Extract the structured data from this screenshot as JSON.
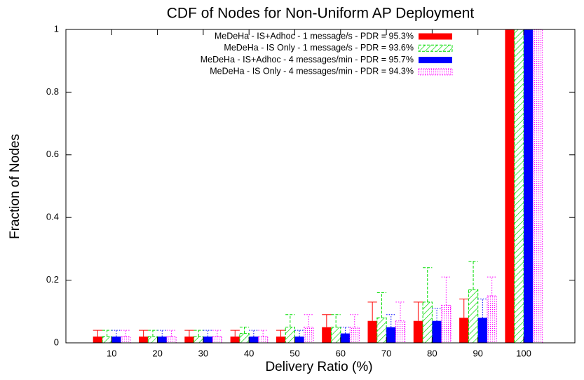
{
  "chart_data": {
    "type": "bar",
    "title": "CDF of Nodes for Non-Uniform AP Deployment",
    "x_label": "Delivery Ratio (%)",
    "y_label": "Fraction of Nodes",
    "categories": [
      "10",
      "20",
      "30",
      "40",
      "50",
      "60",
      "70",
      "80",
      "90",
      "100"
    ],
    "ylim": [
      0,
      1
    ],
    "yticks": [
      0,
      0.2,
      0.4,
      0.6,
      0.8,
      1
    ],
    "legend": "top-right",
    "series": [
      {
        "name": "MeDeHa - IS+Adhoc - 1 message/s - PDR = 95.3%",
        "color": "#ff0000",
        "pattern": "solid",
        "line_style": "solid",
        "values": [
          0.02,
          0.02,
          0.02,
          0.02,
          0.02,
          0.05,
          0.07,
          0.07,
          0.08,
          1
        ],
        "errors": [
          0.02,
          0.02,
          0.02,
          0.02,
          0.02,
          0.04,
          0.06,
          0.06,
          0.06,
          0
        ]
      },
      {
        "name": "MeDeHa - IS Only - 1 message/s - PDR = 93.6%",
        "color": "#00dd00",
        "pattern": "hatched",
        "line_style": "dashed",
        "values": [
          0.02,
          0.02,
          0.02,
          0.03,
          0.05,
          0.05,
          0.08,
          0.13,
          0.17,
          1
        ],
        "errors": [
          0.02,
          0.02,
          0.02,
          0.02,
          0.04,
          0.04,
          0.08,
          0.11,
          0.09,
          0
        ]
      },
      {
        "name": "MeDeHa - IS+Adhoc - 4 messages/min - PDR = 95.7%",
        "color": "#0000ff",
        "pattern": "solid",
        "line_style": "dotted",
        "values": [
          0.02,
          0.02,
          0.02,
          0.02,
          0.02,
          0.03,
          0.05,
          0.07,
          0.08,
          1
        ],
        "errors": [
          0.02,
          0.02,
          0.02,
          0.02,
          0.02,
          0.02,
          0.04,
          0.04,
          0.06,
          0
        ]
      },
      {
        "name": "MeDeHa - IS Only - 4 messages/min - PDR = 94.3%",
        "color": "#ff00ff",
        "pattern": "dotted",
        "line_style": "dotted",
        "values": [
          0.02,
          0.02,
          0.02,
          0.02,
          0.05,
          0.05,
          0.07,
          0.12,
          0.15,
          1
        ],
        "errors": [
          0.02,
          0.02,
          0.02,
          0.02,
          0.04,
          0.04,
          0.06,
          0.09,
          0.06,
          0
        ]
      }
    ]
  }
}
